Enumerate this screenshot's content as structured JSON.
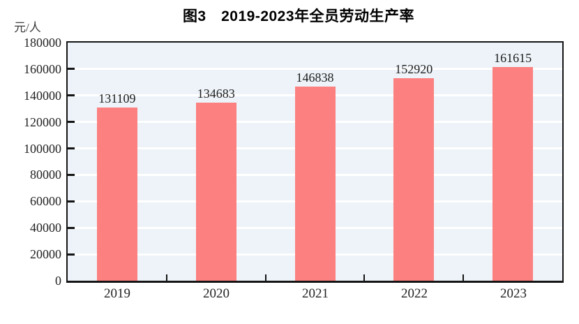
{
  "page": {
    "background": "#ffffff"
  },
  "chart_data": {
    "type": "bar",
    "title": "图3　2019-2023年全员劳动生产率",
    "ylabel": "元/人",
    "xlabel": "",
    "categories": [
      "2019",
      "2020",
      "2021",
      "2022",
      "2023"
    ],
    "values": [
      131109,
      134683,
      146838,
      152920,
      161615
    ],
    "ylim": [
      0,
      180000
    ],
    "ytick_step": 20000,
    "grid": true,
    "legend": "none",
    "colors": {
      "bar_fill": "#fc8080",
      "plot_background": "#edf3f8",
      "gridline": "#ffffff",
      "plot_border": "#141414",
      "tick_mark": "#141414",
      "title_text": "#000000",
      "axis_text": "#222222",
      "unit_text": "#3c3c3c"
    }
  }
}
